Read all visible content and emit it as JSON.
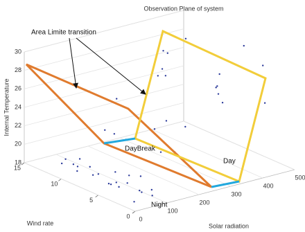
{
  "chart_data": {
    "type": "scatter3d",
    "title": "Observation Plane of system",
    "x_label": "Wind rate",
    "y_label": "Solar radiation",
    "z_label": "Internal Temperature",
    "xlim": [
      0,
      15
    ],
    "xticks": [
      0,
      5,
      10,
      15
    ],
    "ylim": [
      0,
      500
    ],
    "yticks": [
      0,
      100,
      200,
      300,
      400,
      500
    ],
    "zlim": [
      18,
      30
    ],
    "zticks": [
      18,
      20,
      22,
      24,
      26,
      28,
      30
    ],
    "color": "#2b3a9a",
    "x": [
      1,
      2,
      3,
      4,
      5,
      6,
      7,
      8,
      9,
      10,
      11,
      12,
      2,
      4,
      6,
      8,
      10,
      3,
      5,
      7,
      1,
      9,
      3,
      6,
      9,
      12,
      5,
      8,
      11,
      4,
      2,
      4,
      6,
      8,
      10,
      12,
      14,
      3,
      7,
      11,
      13,
      5,
      9,
      1,
      6
    ],
    "y": [
      20,
      60,
      90,
      10,
      40,
      80,
      30,
      70,
      15,
      50,
      25,
      60,
      100,
      110,
      120,
      5,
      90,
      45,
      65,
      100,
      75,
      35,
      150,
      200,
      180,
      220,
      240,
      120,
      160,
      250,
      300,
      350,
      400,
      450,
      320,
      380,
      420,
      470,
      260,
      340,
      460,
      390,
      280,
      430,
      480
    ],
    "z": [
      18.5,
      19,
      18.2,
      19.5,
      18.8,
      18.3,
      19.2,
      18.6,
      19.8,
      18.4,
      19.1,
      18.9,
      18.1,
      19.4,
      18.7,
      20,
      18.5,
      19.6,
      18.3,
      18.9,
      19.3,
      20.2,
      22,
      23,
      21,
      24,
      20.5,
      22.5,
      21.5,
      23.5,
      28,
      27,
      25,
      26,
      29,
      27.5,
      24,
      28.5,
      23,
      26.5,
      28,
      24.5,
      27,
      25.5,
      29.5
    ],
    "annotations": [
      "Area Limite transition",
      "DayBreak",
      "Day",
      "Night"
    ]
  }
}
